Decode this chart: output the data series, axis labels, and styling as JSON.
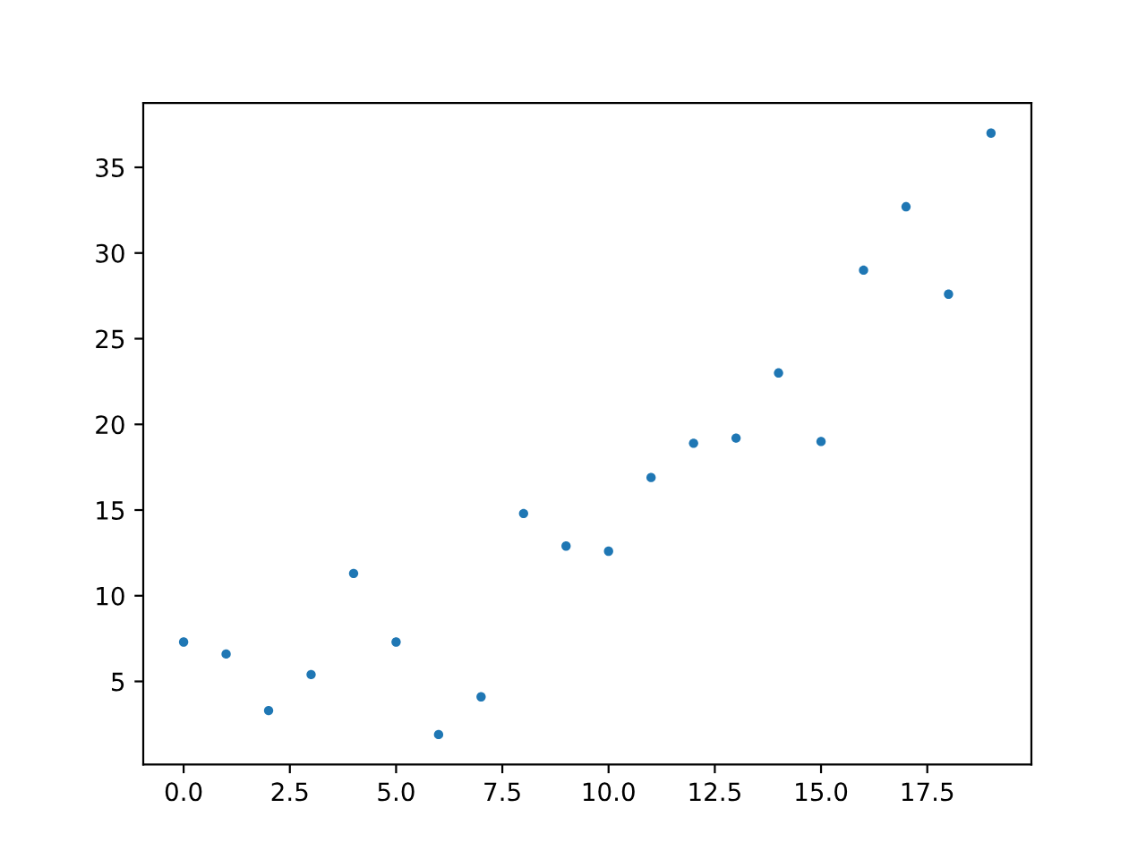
{
  "chart_data": {
    "type": "scatter",
    "x": [
      0,
      1,
      2,
      3,
      4,
      5,
      6,
      7,
      8,
      9,
      10,
      11,
      12,
      13,
      14,
      15,
      16,
      17,
      18,
      19
    ],
    "series": [
      {
        "color": "#1f77b4",
        "values": [
          7.3,
          6.6,
          3.3,
          5.4,
          11.3,
          7.3,
          1.9,
          4.1,
          14.8,
          12.9,
          12.6,
          16.9,
          18.9,
          19.2,
          23.0,
          19.0,
          29.0,
          32.7,
          27.6,
          37.0
        ]
      }
    ],
    "xlim": [
      -0.95,
      19.95
    ],
    "ylim": [
      0.15,
      38.75
    ],
    "xticks": [
      {
        "value": 0,
        "label": "0.0"
      },
      {
        "value": 2.5,
        "label": "2.5"
      },
      {
        "value": 5,
        "label": "5.0"
      },
      {
        "value": 7.5,
        "label": "7.5"
      },
      {
        "value": 10,
        "label": "10.0"
      },
      {
        "value": 12.5,
        "label": "12.5"
      },
      {
        "value": 15,
        "label": "15.0"
      },
      {
        "value": 17.5,
        "label": "17.5"
      }
    ],
    "yticks": [
      5,
      10,
      15,
      20,
      25,
      30,
      35
    ],
    "grid": false,
    "marker": "circle"
  }
}
